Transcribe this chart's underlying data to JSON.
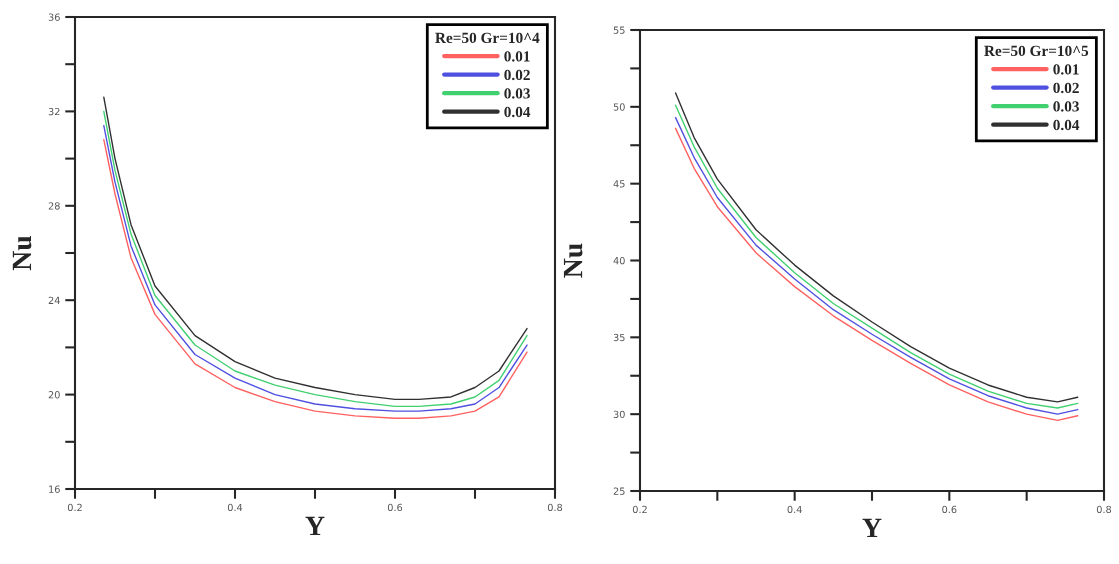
{
  "chart_data": [
    {
      "type": "line",
      "xlabel": "Y",
      "ylabel": "Nu",
      "legend_title": "Re=50 Gr=10^4",
      "legend": "top right",
      "grid": false,
      "xlim": [
        0.2,
        0.8
      ],
      "xticks": [
        0.2,
        {
          "value": 0.3,
          "label": null
        },
        0.4,
        {
          "value": 0.5,
          "label": null
        },
        0.6,
        {
          "value": 0.7,
          "label": null
        },
        0.8
      ],
      "ylim": [
        16,
        36
      ],
      "yticks": [
        16,
        {
          "value": 18,
          "label": null
        },
        20,
        {
          "value": 22,
          "label": null
        },
        24,
        {
          "value": 26,
          "label": null
        },
        28,
        {
          "value": 30,
          "label": null
        },
        32,
        {
          "value": 34,
          "label": null
        },
        36
      ],
      "x": [
        0.236,
        0.25,
        0.27,
        0.3,
        0.35,
        0.4,
        0.45,
        0.5,
        0.55,
        0.6,
        0.63,
        0.67,
        0.7,
        0.73,
        0.765
      ],
      "series": [
        {
          "name": "0.01",
          "color": "#ff6060",
          "values": [
            30.8,
            28.5,
            25.8,
            23.4,
            21.3,
            20.3,
            19.7,
            19.3,
            19.1,
            19.0,
            19.0,
            19.1,
            19.3,
            19.9,
            21.8
          ]
        },
        {
          "name": "0.02",
          "color": "#5050e0",
          "values": [
            31.4,
            29.0,
            26.3,
            23.8,
            21.7,
            20.7,
            20.0,
            19.6,
            19.4,
            19.3,
            19.3,
            19.4,
            19.6,
            20.3,
            22.1
          ]
        },
        {
          "name": "0.03",
          "color": "#40d070",
          "values": [
            32.0,
            29.5,
            26.8,
            24.2,
            22.1,
            21.0,
            20.4,
            20.0,
            19.7,
            19.5,
            19.5,
            19.6,
            19.9,
            20.6,
            22.5
          ]
        },
        {
          "name": "0.04",
          "color": "#303030",
          "values": [
            32.6,
            30.0,
            27.2,
            24.6,
            22.5,
            21.4,
            20.7,
            20.3,
            20.0,
            19.8,
            19.8,
            19.9,
            20.3,
            21.0,
            22.8
          ]
        }
      ]
    },
    {
      "type": "line",
      "xlabel": "Y",
      "ylabel": "Nu",
      "legend_title": "Re=50 Gr=10^5",
      "legend": "top right",
      "grid": false,
      "xlim": [
        0.2,
        0.8
      ],
      "xticks": [
        0.2,
        {
          "value": 0.3,
          "label": null
        },
        0.4,
        {
          "value": 0.5,
          "label": null
        },
        0.6,
        {
          "value": 0.7,
          "label": null
        },
        0.8
      ],
      "ylim": [
        25,
        55
      ],
      "yticks": [
        25,
        {
          "value": 27.5,
          "label": null
        },
        30,
        {
          "value": 32.5,
          "label": null
        },
        35,
        {
          "value": 37.5,
          "label": null
        },
        40,
        {
          "value": 42.5,
          "label": null
        },
        45,
        {
          "value": 47.5,
          "label": null
        },
        50,
        {
          "value": 52.5,
          "label": null
        },
        55
      ],
      "x": [
        0.246,
        0.27,
        0.3,
        0.35,
        0.4,
        0.45,
        0.5,
        0.55,
        0.6,
        0.65,
        0.7,
        0.74,
        0.766
      ],
      "series": [
        {
          "name": "0.01",
          "color": "#ff6060",
          "values": [
            48.6,
            46.0,
            43.5,
            40.5,
            38.3,
            36.4,
            34.8,
            33.3,
            31.9,
            30.8,
            30.0,
            29.6,
            29.9
          ]
        },
        {
          "name": "0.02",
          "color": "#5050e0",
          "values": [
            49.3,
            46.7,
            44.1,
            41.0,
            38.8,
            36.8,
            35.2,
            33.7,
            32.3,
            31.2,
            30.4,
            30.0,
            30.3
          ]
        },
        {
          "name": "0.03",
          "color": "#40d070",
          "values": [
            50.1,
            47.4,
            44.7,
            41.5,
            39.2,
            37.2,
            35.6,
            34.0,
            32.6,
            31.5,
            30.7,
            30.4,
            30.7
          ]
        },
        {
          "name": "0.04",
          "color": "#303030",
          "values": [
            50.9,
            48.0,
            45.3,
            42.0,
            39.7,
            37.7,
            36.0,
            34.4,
            33.0,
            31.9,
            31.1,
            30.8,
            31.1
          ]
        }
      ]
    }
  ]
}
